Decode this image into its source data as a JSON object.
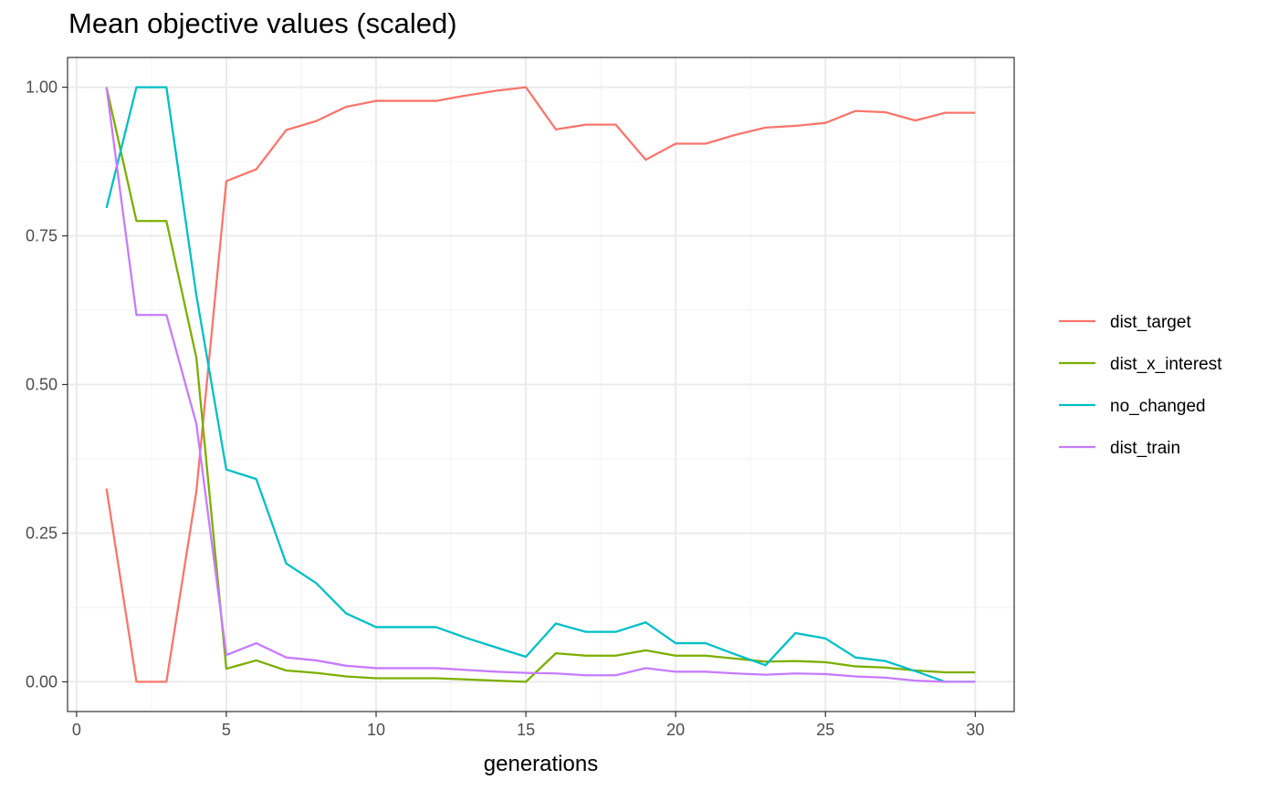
{
  "chart_data": {
    "type": "line",
    "title": "Mean objective values (scaled)",
    "xlabel": "generations",
    "ylabel": "",
    "xlim": [
      -0.3,
      31.3
    ],
    "ylim": [
      -0.05,
      1.05
    ],
    "x_ticks": [
      0,
      5,
      10,
      15,
      20,
      25,
      30
    ],
    "x_tick_labels": [
      "0",
      "5",
      "10",
      "15",
      "20",
      "25",
      "30"
    ],
    "y_ticks": [
      0,
      0.25,
      0.5,
      0.75,
      1.0
    ],
    "y_tick_labels": [
      "0.00",
      "0.25",
      "0.50",
      "0.75",
      "1.00"
    ],
    "grid": true,
    "legend_position": "right",
    "x": [
      1,
      2,
      3,
      4,
      5,
      6,
      7,
      8,
      9,
      10,
      11,
      12,
      13,
      14,
      15,
      16,
      17,
      18,
      19,
      20,
      21,
      22,
      23,
      24,
      25,
      26,
      27,
      28,
      29,
      30
    ],
    "series": [
      {
        "name": "dist_target",
        "color": "#F8766D",
        "values": [
          0.325,
          0,
          0,
          0.32,
          0.842,
          0.862,
          0.928,
          0.943,
          0.967,
          0.977,
          0.977,
          0.977,
          0.986,
          0.994,
          1.0,
          0.929,
          0.937,
          0.937,
          0.878,
          0.905,
          0.905,
          0.92,
          0.932,
          0.935,
          0.94,
          0.96,
          0.958,
          0.944,
          0.957,
          0.957
        ]
      },
      {
        "name": "dist_x_interest",
        "color": "#7CAE00",
        "values": [
          1.0,
          0.775,
          0.775,
          0.545,
          0.022,
          0.036,
          0.019,
          0.015,
          0.009,
          0.006,
          0.006,
          0.006,
          0.004,
          0.002,
          0.0,
          0.048,
          0.044,
          0.044,
          0.053,
          0.044,
          0.044,
          0.039,
          0.034,
          0.035,
          0.033,
          0.026,
          0.024,
          0.019,
          0.016,
          0.016
        ]
      },
      {
        "name": "no_changed",
        "color": "#00BFC4",
        "values": [
          0.797,
          1.0,
          1.0,
          0.65,
          0.357,
          0.341,
          0.199,
          0.166,
          0.115,
          0.092,
          0.092,
          0.092,
          0.074,
          0.058,
          0.042,
          0.098,
          0.084,
          0.084,
          0.1,
          0.065,
          0.065,
          0.046,
          0.028,
          0.082,
          0.073,
          0.041,
          0.035,
          0.018,
          0.0,
          0.0
        ]
      },
      {
        "name": "dist_train",
        "color": "#C77CFF",
        "values": [
          1.0,
          0.617,
          0.617,
          0.434,
          0.045,
          0.065,
          0.041,
          0.036,
          0.027,
          0.023,
          0.023,
          0.023,
          0.02,
          0.017,
          0.015,
          0.014,
          0.011,
          0.011,
          0.023,
          0.017,
          0.017,
          0.014,
          0.012,
          0.014,
          0.013,
          0.009,
          0.007,
          0.002,
          0.0,
          0.0
        ]
      }
    ]
  }
}
